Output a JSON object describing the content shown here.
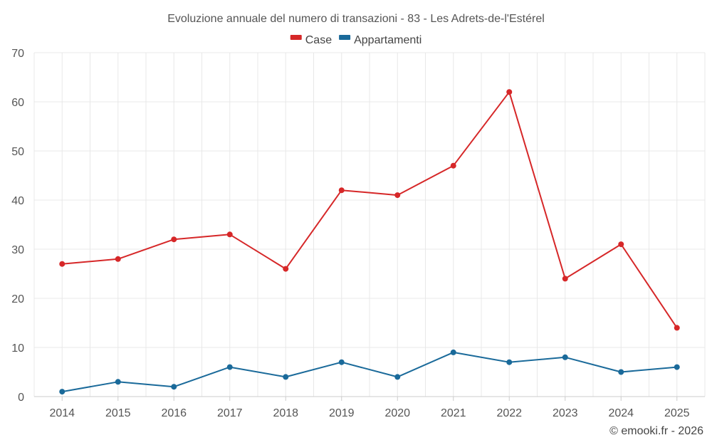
{
  "chart_data": {
    "type": "line",
    "title": "Evoluzione annuale del numero di transazioni - 83 - Les Adrets-de-l'Estérel",
    "xlabel": "",
    "ylabel": "",
    "categories": [
      "2014",
      "2015",
      "2016",
      "2017",
      "2018",
      "2019",
      "2020",
      "2021",
      "2022",
      "2023",
      "2024",
      "2025"
    ],
    "ylim": [
      0,
      70
    ],
    "yticks": [
      0,
      10,
      20,
      30,
      40,
      50,
      60,
      70
    ],
    "grid": true,
    "legend_position": "top-center",
    "series": [
      {
        "name": "Case",
        "color": "#d62728",
        "values": [
          27,
          28,
          32,
          33,
          26,
          42,
          41,
          47,
          62,
          24,
          31,
          14
        ]
      },
      {
        "name": "Appartamenti",
        "color": "#1a6a9a",
        "values": [
          1,
          3,
          2,
          6,
          4,
          7,
          4,
          9,
          7,
          8,
          5,
          6
        ]
      }
    ]
  },
  "credit": "© emooki.fr - 2026"
}
